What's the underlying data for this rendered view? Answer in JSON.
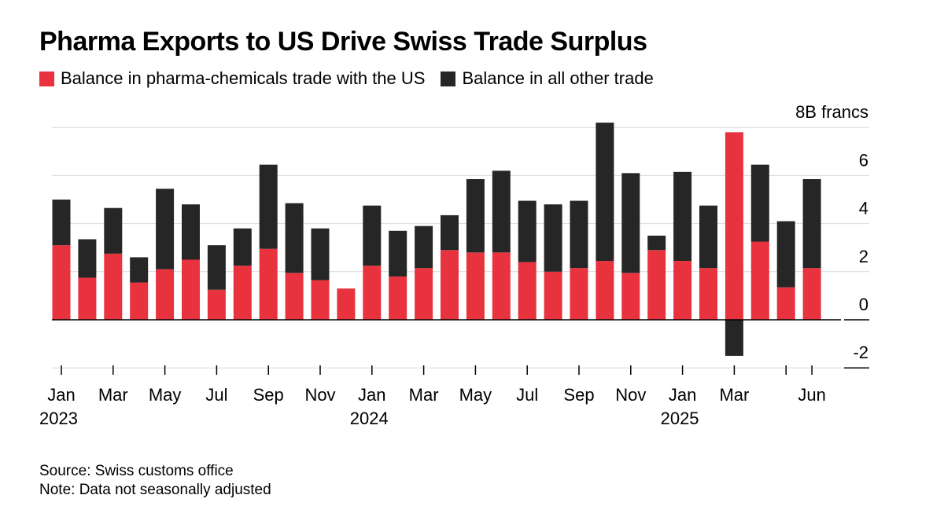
{
  "title": "Pharma Exports to US Drive Swiss Trade Surplus",
  "source": "Source: Swiss customs office",
  "note": "Note: Data not seasonally adjusted",
  "colors": {
    "pharma": "#e8333f",
    "other": "#262626",
    "grid": "#d9d9d9",
    "zero": "#000000"
  },
  "chart_data": {
    "type": "bar",
    "stacked": true,
    "title": "Pharma Exports to US Drive Swiss Trade Surplus",
    "unit_label": "8B francs",
    "ylim": [
      -2,
      8
    ],
    "yticks": [
      8,
      6,
      4,
      2,
      0,
      -2
    ],
    "ytick_labels": [
      "8B francs",
      "6",
      "4",
      "2",
      "0",
      "-2"
    ],
    "legend_position": "top-left",
    "categories": [
      "Jan 2023",
      "Feb 2023",
      "Mar 2023",
      "Apr 2023",
      "May 2023",
      "Jun 2023",
      "Jul 2023",
      "Aug 2023",
      "Sep 2023",
      "Oct 2023",
      "Nov 2023",
      "Dec 2023",
      "Jan 2024",
      "Feb 2024",
      "Mar 2024",
      "Apr 2024",
      "May 2024",
      "Jun 2024",
      "Jul 2024",
      "Aug 2024",
      "Sep 2024",
      "Oct 2024",
      "Nov 2024",
      "Dec 2024",
      "Jan 2025",
      "Feb 2025",
      "Mar 2025",
      "Apr 2025",
      "May 2025",
      "Jun 2025"
    ],
    "series": [
      {
        "name": "Balance in pharma-chemicals trade with the US",
        "color": "#e8333f",
        "values": [
          3.1,
          1.75,
          2.75,
          1.55,
          2.1,
          2.5,
          1.25,
          2.25,
          2.95,
          1.95,
          1.65,
          1.3,
          2.25,
          1.8,
          2.15,
          2.9,
          2.8,
          2.8,
          2.4,
          2.0,
          2.15,
          2.45,
          1.95,
          2.9,
          2.45,
          2.15,
          7.8,
          3.25,
          1.35,
          2.15
        ]
      },
      {
        "name": "Balance in all other trade",
        "color": "#262626",
        "values": [
          1.9,
          1.6,
          1.9,
          1.05,
          3.35,
          2.3,
          1.85,
          1.55,
          3.5,
          2.9,
          2.15,
          0,
          2.5,
          1.9,
          1.75,
          1.45,
          3.05,
          3.4,
          2.55,
          2.8,
          2.8,
          5.75,
          4.15,
          0.6,
          3.7,
          2.6,
          -1.5,
          3.2,
          2.75,
          3.7
        ]
      }
    ],
    "x_tick_labels": [
      {
        "index": 0,
        "month": "Jan",
        "year": "2023"
      },
      {
        "index": 2,
        "month": "Mar",
        "year": ""
      },
      {
        "index": 4,
        "month": "May",
        "year": ""
      },
      {
        "index": 6,
        "month": "Jul",
        "year": ""
      },
      {
        "index": 8,
        "month": "Sep",
        "year": ""
      },
      {
        "index": 10,
        "month": "Nov",
        "year": ""
      },
      {
        "index": 12,
        "month": "Jan",
        "year": "2024"
      },
      {
        "index": 14,
        "month": "Mar",
        "year": ""
      },
      {
        "index": 16,
        "month": "May",
        "year": ""
      },
      {
        "index": 18,
        "month": "Jul",
        "year": ""
      },
      {
        "index": 20,
        "month": "Sep",
        "year": ""
      },
      {
        "index": 22,
        "month": "Nov",
        "year": ""
      },
      {
        "index": 24,
        "month": "Jan",
        "year": "2025"
      },
      {
        "index": 26,
        "month": "Mar",
        "year": ""
      },
      {
        "index": 29,
        "month": "Jun",
        "year": ""
      }
    ]
  }
}
